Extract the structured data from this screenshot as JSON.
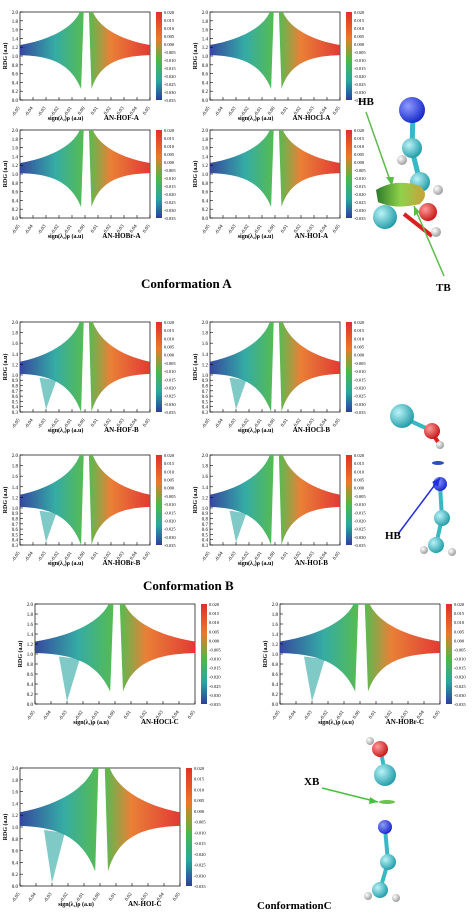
{
  "figure": {
    "conformation_labels": [
      "Conformation A",
      "Conformation B",
      "ConformationC"
    ],
    "molecule_labels": {
      "A": [
        "HB",
        "TB"
      ],
      "B": [
        "HB"
      ],
      "C": [
        "XB"
      ]
    }
  },
  "colors": {
    "red": "#e0302a",
    "orange": "#e87a2c",
    "green": "#4db848",
    "teal": "#2aa7a0",
    "blue": "#2b3f9b",
    "atom_cyan": "#37b8c2",
    "atom_blue": "#1f2fe0",
    "atom_red": "#dd1f1f",
    "atom_white": "#e8e8e8"
  },
  "chart_data": [
    {
      "type": "scatter",
      "title": "AN-HOF-A",
      "xlabel": "sign(λ₂)ρ (a.u)",
      "ylabel": "RDG (a.u)",
      "xlim": [
        -0.05,
        0.05
      ],
      "ylim": [
        0,
        2.0
      ],
      "xticks": [
        "-0.05",
        "-0.04",
        "-0.03",
        "-0.02",
        "-0.01",
        "0.00",
        "0.01",
        "0.02",
        "0.03",
        "0.04",
        "0.05"
      ],
      "yticks": [
        "0.0",
        "0.2",
        "0.4",
        "0.6",
        "0.8",
        "1.0",
        "1.2",
        "1.4",
        "1.6",
        "1.8",
        "2.0"
      ],
      "colorbar": [
        "0.020",
        "0.015",
        "0.010",
        "0.005",
        "0.000",
        "-0.005",
        "-0.010",
        "-0.015",
        "-0.020",
        "-0.025",
        "-0.030",
        "-0.035"
      ]
    },
    {
      "type": "scatter",
      "title": "AN-HOCl-A",
      "xlabel": "sign(λ₂)ρ (a.u)",
      "ylabel": "RDG (a.u)",
      "xlim": [
        -0.05,
        0.05
      ],
      "ylim": [
        0,
        2.0
      ],
      "xticks": [
        "-0.05",
        "-0.04",
        "-0.03",
        "-0.02",
        "-0.01",
        "0.00",
        "0.01",
        "0.02",
        "0.03",
        "0.04",
        "0.05"
      ],
      "yticks": [
        "0.0",
        "0.2",
        "0.4",
        "0.6",
        "0.8",
        "1.0",
        "1.2",
        "1.4",
        "1.6",
        "1.8",
        "2.0"
      ],
      "colorbar": [
        "0.020",
        "0.015",
        "0.010",
        "0.005",
        "0.000",
        "-0.005",
        "-0.010",
        "-0.015",
        "-0.020",
        "-0.025",
        "-0.030",
        "-0.035"
      ]
    },
    {
      "type": "scatter",
      "title": "AN-HOBr-A",
      "xlabel": "sign(λ₂)ρ (a.u)",
      "ylabel": "RDG (a.u)",
      "xlim": [
        -0.05,
        0.05
      ],
      "ylim": [
        0,
        2.0
      ],
      "xticks": [
        "-0.05",
        "-0.04",
        "-0.03",
        "-0.02",
        "-0.01",
        "0.00",
        "0.01",
        "0.02",
        "0.03",
        "0.04",
        "0.05"
      ],
      "yticks": [
        "0.0",
        "0.2",
        "0.4",
        "0.6",
        "0.8",
        "1.0",
        "1.2",
        "1.4",
        "1.6",
        "1.8",
        "2.0"
      ],
      "colorbar": [
        "0.020",
        "0.015",
        "0.010",
        "0.005",
        "0.000",
        "-0.005",
        "-0.010",
        "-0.015",
        "-0.020",
        "-0.025",
        "-0.030",
        "-0.035"
      ]
    },
    {
      "type": "scatter",
      "title": "AN-HOI-A",
      "xlabel": "sign(λ₂)ρ (a.u)",
      "ylabel": "RDG (a.u)",
      "xlim": [
        -0.05,
        0.05
      ],
      "ylim": [
        0,
        2.0
      ],
      "xticks": [
        "-0.05",
        "-0.04",
        "-0.03",
        "-0.02",
        "-0.01",
        "0.00",
        "0.01",
        "0.02",
        "0.03",
        "0.04",
        "0.05"
      ],
      "yticks": [
        "0.0",
        "0.2",
        "0.4",
        "0.6",
        "0.8",
        "1.0",
        "1.2",
        "1.4",
        "1.6",
        "1.8",
        "2.0"
      ],
      "colorbar": [
        "0.020",
        "0.015",
        "0.010",
        "0.005",
        "0.000",
        "-0.005",
        "-0.010",
        "-0.015",
        "-0.020",
        "-0.025",
        "-0.030",
        "-0.035"
      ]
    },
    {
      "type": "scatter",
      "title": "AN-HOF-B",
      "xlabel": "sign(λ₂)ρ (a.u)",
      "ylabel": "RDG (a.u)",
      "xlim": [
        -0.05,
        0.05
      ],
      "ylim": [
        0.3,
        2.0
      ],
      "xticks": [
        "-0.05",
        "-0.04",
        "-0.03",
        "-0.02",
        "-0.01",
        "0.00",
        "0.01",
        "0.02",
        "0.03",
        "0.04",
        "0.05"
      ],
      "yticks": [
        "0.3",
        "0.4",
        "0.5",
        "0.6",
        "0.7",
        "0.8",
        "0.9",
        "1.0",
        "1.2",
        "1.4",
        "1.6",
        "1.8",
        "2.0"
      ],
      "colorbar": [
        "0.020",
        "0.015",
        "0.010",
        "0.005",
        "0.000",
        "-0.005",
        "-0.010",
        "-0.015",
        "-0.020",
        "-0.025",
        "-0.030",
        "-0.035"
      ]
    },
    {
      "type": "scatter",
      "title": "AN-HOCl-B",
      "xlabel": "sign(λ₂)ρ (a.u)",
      "ylabel": "RDG (a.u)",
      "xlim": [
        -0.05,
        0.05
      ],
      "ylim": [
        0.3,
        2.0
      ],
      "xticks": [
        "-0.05",
        "-0.04",
        "-0.03",
        "-0.02",
        "-0.01",
        "0.00",
        "0.01",
        "0.02",
        "0.03",
        "0.04",
        "0.05"
      ],
      "yticks": [
        "0.3",
        "0.4",
        "0.5",
        "0.6",
        "0.7",
        "0.8",
        "0.9",
        "1.0",
        "1.2",
        "1.4",
        "1.6",
        "1.8",
        "2.0"
      ],
      "colorbar": [
        "0.020",
        "0.015",
        "0.010",
        "0.005",
        "0.000",
        "-0.005",
        "-0.010",
        "-0.015",
        "-0.020",
        "-0.025",
        "-0.030",
        "-0.035"
      ]
    },
    {
      "type": "scatter",
      "title": "AN-HOBr-B",
      "xlabel": "sign(λ₂)ρ (a.u)",
      "ylabel": "RDG (a.u)",
      "xlim": [
        -0.05,
        0.05
      ],
      "ylim": [
        0.3,
        2.0
      ],
      "xticks": [
        "-0.05",
        "-0.04",
        "-0.03",
        "-0.02",
        "-0.01",
        "0.00",
        "0.01",
        "0.02",
        "0.03",
        "0.04",
        "0.05"
      ],
      "yticks": [
        "0.3",
        "0.4",
        "0.5",
        "0.6",
        "0.7",
        "0.8",
        "0.9",
        "1.0",
        "1.2",
        "1.4",
        "1.6",
        "1.8",
        "2.0"
      ],
      "colorbar": [
        "0.020",
        "0.015",
        "0.010",
        "0.005",
        "0.000",
        "-0.005",
        "-0.010",
        "-0.015",
        "-0.020",
        "-0.025",
        "-0.030",
        "-0.035"
      ]
    },
    {
      "type": "scatter",
      "title": "AN-HOI-B",
      "xlabel": "sign(λ₂)ρ (a.u)",
      "ylabel": "RDG (a.u)",
      "xlim": [
        -0.05,
        0.05
      ],
      "ylim": [
        0.3,
        2.0
      ],
      "xticks": [
        "-0.05",
        "-0.04",
        "-0.03",
        "-0.02",
        "-0.01",
        "0.00",
        "0.01",
        "0.02",
        "0.03",
        "0.04",
        "0.05"
      ],
      "yticks": [
        "0.3",
        "0.4",
        "0.5",
        "0.6",
        "0.7",
        "0.8",
        "0.9",
        "1.0",
        "1.2",
        "1.4",
        "1.6",
        "1.8",
        "2.0"
      ],
      "colorbar": [
        "0.020",
        "0.015",
        "0.010",
        "0.005",
        "0.000",
        "-0.005",
        "-0.010",
        "-0.015",
        "-0.020",
        "-0.025",
        "-0.030",
        "-0.035"
      ]
    },
    {
      "type": "scatter",
      "title": "AN-HOCl-C",
      "xlabel": "sign(λ₂)ρ (a.u)",
      "ylabel": "RDG (a.u)",
      "xlim": [
        -0.05,
        0.05
      ],
      "ylim": [
        0,
        2.0
      ],
      "xticks": [
        "-0.05",
        "-0.04",
        "-0.03",
        "-0.02",
        "-0.01",
        "0.00",
        "0.01",
        "0.02",
        "0.03",
        "0.04",
        "0.05"
      ],
      "yticks": [
        "0.0",
        "0.2",
        "0.4",
        "0.6",
        "0.8",
        "1.0",
        "1.2",
        "1.4",
        "1.6",
        "1.8",
        "2.0"
      ],
      "colorbar": [
        "0.020",
        "0.015",
        "0.010",
        "0.005",
        "0.000",
        "-0.005",
        "-0.010",
        "-0.015",
        "-0.020",
        "-0.025",
        "-0.030",
        "-0.035"
      ]
    },
    {
      "type": "scatter",
      "title": "AN-HOBr-C",
      "xlabel": "sign(λ₂)ρ (a.u)",
      "ylabel": "RDG (a.u)",
      "xlim": [
        -0.05,
        0.05
      ],
      "ylim": [
        0,
        2.0
      ],
      "xticks": [
        "-0.05",
        "-0.04",
        "-0.03",
        "-0.02",
        "-0.01",
        "0.00",
        "0.01",
        "0.02",
        "0.03",
        "0.04",
        "0.05"
      ],
      "yticks": [
        "0.0",
        "0.2",
        "0.4",
        "0.6",
        "0.8",
        "1.0",
        "1.2",
        "1.4",
        "1.6",
        "1.8",
        "2.0"
      ],
      "colorbar": [
        "0.020",
        "0.015",
        "0.010",
        "0.005",
        "0.000",
        "-0.005",
        "-0.010",
        "-0.015",
        "-0.020",
        "-0.025",
        "-0.030",
        "-0.035"
      ]
    },
    {
      "type": "scatter",
      "title": "AN-HOI-C",
      "xlabel": "sign(λ₂)ρ (a.u)",
      "ylabel": "RDG (a.u)",
      "xlim": [
        -0.05,
        0.05
      ],
      "ylim": [
        0,
        2.0
      ],
      "xticks": [
        "-0.05",
        "-0.04",
        "-0.03",
        "-0.02",
        "-0.01",
        "0.00",
        "0.01",
        "0.02",
        "0.03",
        "0.04",
        "0.05"
      ],
      "yticks": [
        "0.0",
        "0.2",
        "0.4",
        "0.6",
        "0.8",
        "1.0",
        "1.2",
        "1.4",
        "1.6",
        "1.8",
        "2.0"
      ],
      "colorbar": [
        "0.020",
        "0.015",
        "0.010",
        "0.005",
        "0.000",
        "-0.005",
        "-0.010",
        "-0.015",
        "-0.020",
        "-0.025",
        "-0.030",
        "-0.035"
      ]
    }
  ]
}
